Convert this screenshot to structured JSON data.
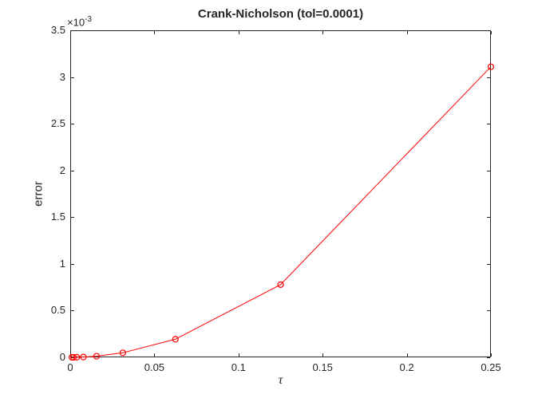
{
  "figure": {
    "background": "#ffffff"
  },
  "chart_data": {
    "type": "line",
    "title": "Crank-Nicholson (tol=0.0001)",
    "xlabel": "τ",
    "ylabel": "error",
    "y_exponent": {
      "mantissa": "×10",
      "exponent": "-3"
    },
    "xlim": [
      0,
      0.25
    ],
    "ylim": [
      0,
      0.0035
    ],
    "x_ticks": [
      0,
      0.05,
      0.1,
      0.15,
      0.2,
      0.25
    ],
    "x_tick_labels": [
      "0",
      "0.05",
      "0.1",
      "0.15",
      "0.2",
      "0.25"
    ],
    "y_ticks": [
      0,
      0.0005,
      0.001,
      0.0015,
      0.002,
      0.0025,
      0.003,
      0.0035
    ],
    "y_tick_labels": [
      "0",
      "0.5",
      "1",
      "1.5",
      "2",
      "2.5",
      "3",
      "3.5"
    ],
    "grid": false,
    "axis_color": "#262626",
    "text_color": "#262626",
    "series": [
      {
        "name": "error",
        "color": "#ff0000",
        "marker": "o",
        "line_style": "solid",
        "x": [
          0.0009765625,
          0.001953125,
          0.00390625,
          0.0078125,
          0.015625,
          0.03125,
          0.0625,
          0.125,
          0.25
        ],
        "y": [
          4.75e-08,
          1.9e-07,
          7.6e-07,
          3.04e-06,
          1.22e-05,
          4.86e-05,
          0.000194,
          0.000778,
          0.00311
        ]
      }
    ]
  }
}
